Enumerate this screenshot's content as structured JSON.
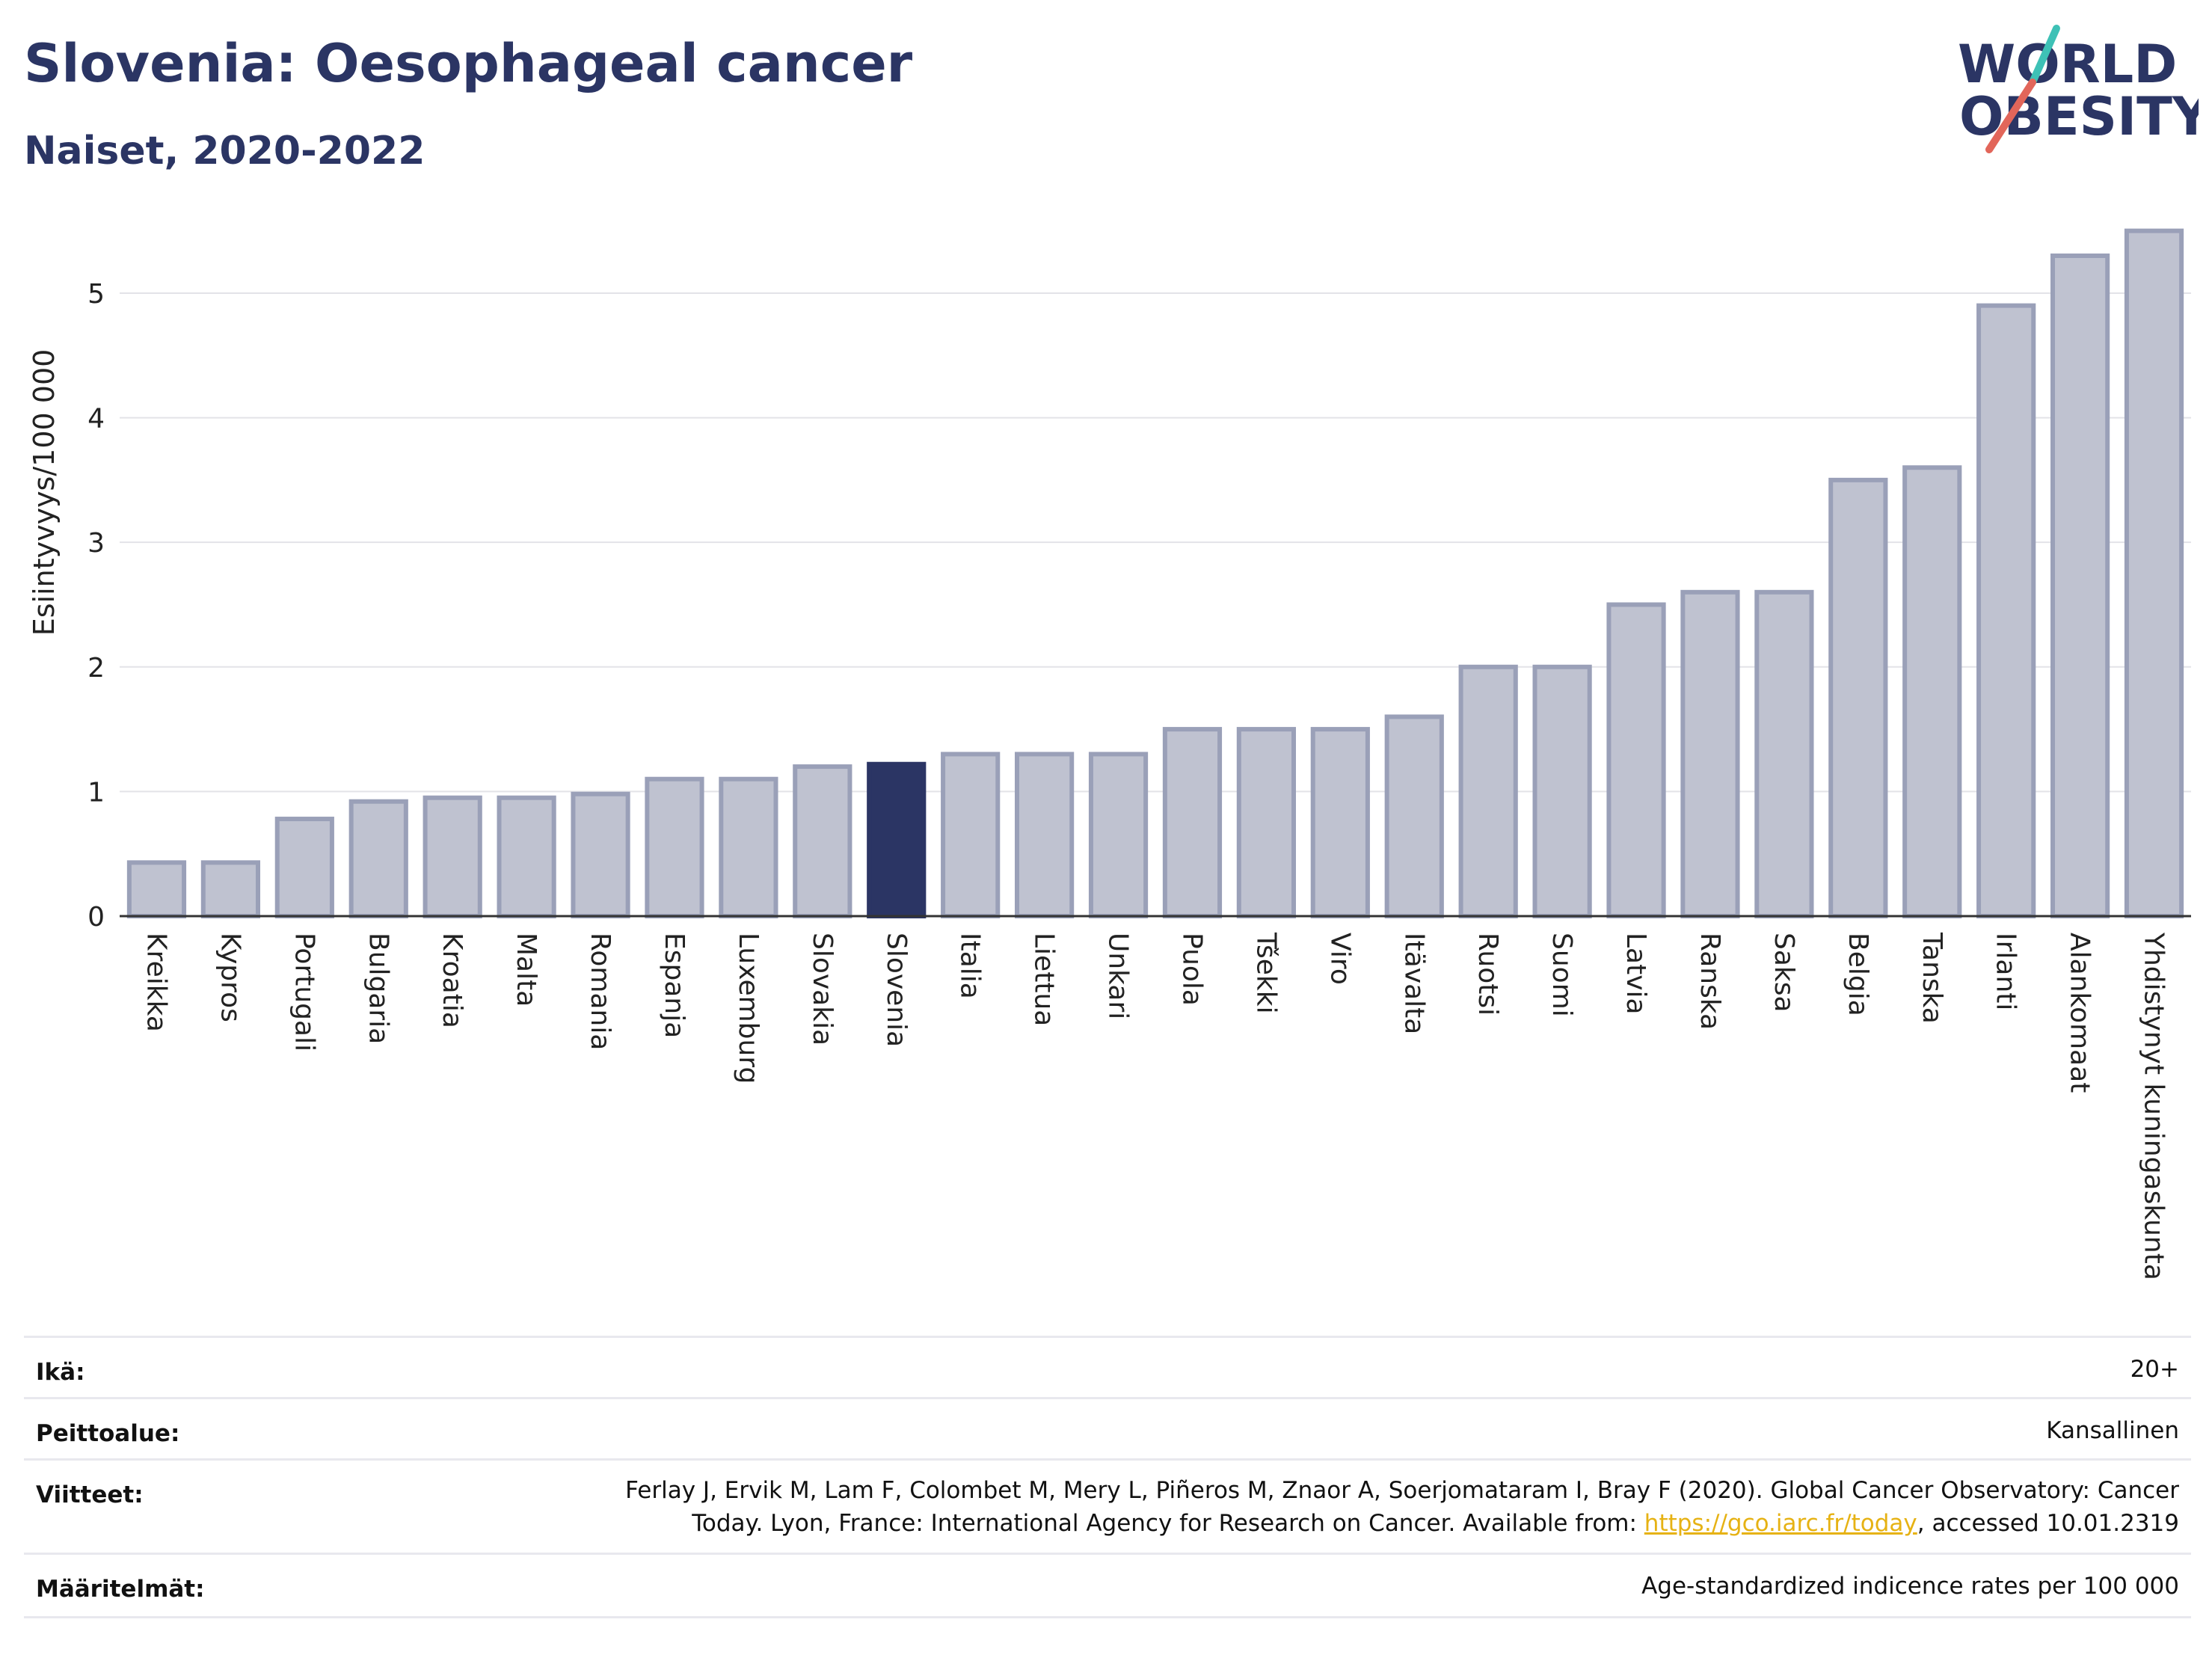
{
  "header": {
    "title": "Slovenia: Oesophageal cancer",
    "subtitle": "Naiset, 2020-2022"
  },
  "logo": {
    "line1": "WORLD",
    "line2": "OBESITY",
    "icon": "world-obesity-logo"
  },
  "colors": {
    "bar": "#bfc2d0",
    "bar_border": "#9aa0b8",
    "highlight": "#2b3564",
    "title": "#2b3564",
    "link": "#e6b214"
  },
  "chart_data": {
    "type": "bar",
    "title": "Slovenia: Oesophageal cancer",
    "subtitle": "Naiset, 2020-2022",
    "xlabel": "",
    "ylabel": "Esiintyvyys/100 000",
    "ylim": [
      0,
      5.6
    ],
    "yticks": [
      0,
      1,
      2,
      3,
      4,
      5
    ],
    "grid": true,
    "highlight": "Slovenia",
    "categories": [
      "Kreikka",
      "Kypros",
      "Portugali",
      "Bulgaria",
      "Kroatia",
      "Malta",
      "Romania",
      "Espanja",
      "Luxemburg",
      "Slovakia",
      "Slovenia",
      "Italia",
      "Liettua",
      "Unkari",
      "Puola",
      "Tšekki",
      "Viro",
      "Itävalta",
      "Ruotsi",
      "Suomi",
      "Latvia",
      "Ranska",
      "Saksa",
      "Belgia",
      "Tanska",
      "Irlanti",
      "Alankomaat",
      "Yhdistynyt kuningaskunta"
    ],
    "values": [
      0.43,
      0.43,
      0.78,
      0.92,
      0.95,
      0.95,
      0.98,
      1.1,
      1.1,
      1.2,
      1.22,
      1.3,
      1.3,
      1.3,
      1.5,
      1.5,
      1.5,
      1.6,
      2.0,
      2.0,
      2.5,
      2.6,
      2.6,
      3.5,
      3.6,
      4.9,
      5.3,
      5.5
    ]
  },
  "meta": {
    "age_label": "Ikä:",
    "age_value": "20+",
    "coverage_label": "Peittoalue:",
    "coverage_value": "Kansallinen",
    "refs_label": "Viitteet:",
    "refs_line1": "Ferlay J, Ervik M, Lam F, Colombet M, Mery L, Piñeros M, Znaor A, Soerjomataram I, Bray F (2020). Global Cancer Observatory: Cancer",
    "refs_line2_pre": "Today. Lyon, France: International Agency for Research on Cancer. Available from: ",
    "refs_link": "https://gco.iarc.fr/today",
    "refs_line2_post": ", accessed 10.01.2319",
    "defs_label": "Määritelmät:",
    "defs_value": "Age-standardized indicence rates per 100 000"
  }
}
